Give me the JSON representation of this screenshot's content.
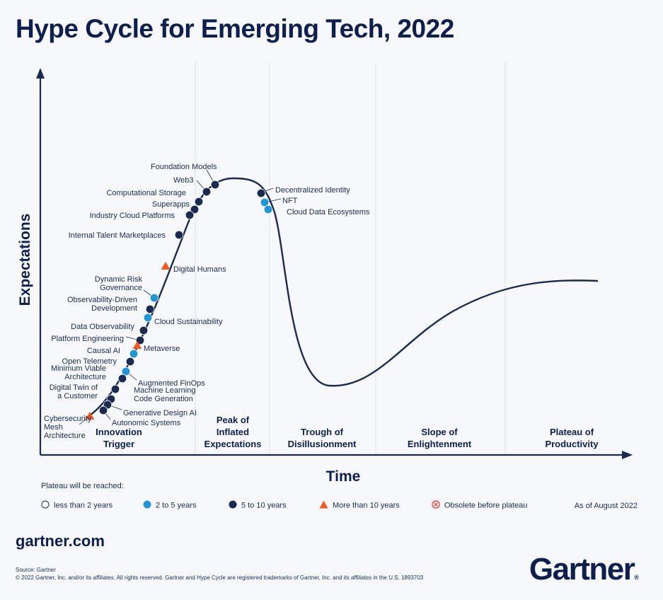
{
  "title": "Hype Cycle for Emerging Tech, 2022",
  "axes": {
    "y_label": "Expectations",
    "x_label": "Time"
  },
  "phases": [
    {
      "lines": [
        "Innovation",
        "Trigger"
      ]
    },
    {
      "lines": [
        "Peak of",
        "Inflated",
        "Expectations"
      ]
    },
    {
      "lines": [
        "Trough of",
        "Disillusionment"
      ]
    },
    {
      "lines": [
        "Slope of",
        "Enlightenment"
      ]
    },
    {
      "lines": [
        "Plateau of",
        "Productivity"
      ]
    }
  ],
  "colors": {
    "navy": "#1b2a4e",
    "blue": "#2196d3",
    "orange": "#f05a22",
    "obsolete": "#e0362c",
    "grid": "#dde3ec"
  },
  "technologies": [
    {
      "name": [
        "Foundation Models"
      ],
      "category": "5-10"
    },
    {
      "name": [
        "Web3"
      ],
      "category": "5-10"
    },
    {
      "name": [
        "Computational Storage"
      ],
      "category": "5-10"
    },
    {
      "name": [
        "Superapps"
      ],
      "category": "5-10"
    },
    {
      "name": [
        "Industry Cloud Platforms"
      ],
      "category": "5-10"
    },
    {
      "name": [
        "Internal Talent Marketplaces"
      ],
      "category": "5-10"
    },
    {
      "name": [
        "Digital Humans"
      ],
      "category": "10+"
    },
    {
      "name": [
        "Dynamic Risk",
        "Governance"
      ],
      "category": "2-5"
    },
    {
      "name": [
        "Observability-Driven",
        "Development"
      ],
      "category": "5-10"
    },
    {
      "name": [
        "Cloud Sustainability"
      ],
      "category": "2-5"
    },
    {
      "name": [
        "Data Observability"
      ],
      "category": "5-10"
    },
    {
      "name": [
        "Platform Engineering"
      ],
      "category": "5-10"
    },
    {
      "name": [
        "Metaverse"
      ],
      "category": "10+"
    },
    {
      "name": [
        "Causal AI"
      ],
      "category": "2-5"
    },
    {
      "name": [
        "Open Telemetry"
      ],
      "category": "5-10"
    },
    {
      "name": [
        "Augmented FinOps"
      ],
      "category": "2-5"
    },
    {
      "name": [
        "Minimum Viable",
        "Architecture"
      ],
      "category": "5-10"
    },
    {
      "name": [
        "Digital Twin of",
        "a Customer"
      ],
      "category": "5-10"
    },
    {
      "name": [
        "Machine Learning",
        "Code Generation"
      ],
      "category": "5-10"
    },
    {
      "name": [
        "Generative Design AI"
      ],
      "category": "5-10"
    },
    {
      "name": [
        "Autonomic Systems"
      ],
      "category": "5-10"
    },
    {
      "name": [
        "Cybersecurity",
        "Mesh",
        "Architecture"
      ],
      "category": "10+"
    },
    {
      "name": [
        "Decentralized Identity"
      ],
      "category": "5-10"
    },
    {
      "name": [
        "NFT"
      ],
      "category": "2-5"
    },
    {
      "name": [
        "Cloud Data Ecosystems"
      ],
      "category": "2-5"
    }
  ],
  "legend": {
    "heading": "Plateau will be reached:",
    "items": [
      {
        "label": "less than 2 years",
        "symbol": "circle-open"
      },
      {
        "label": "2 to 5 years",
        "symbol": "circle-blue"
      },
      {
        "label": "5 to 10 years",
        "symbol": "circle-navy"
      },
      {
        "label": "More than 10 years",
        "symbol": "triangle-orange"
      },
      {
        "label": "Obsolete before plateau",
        "symbol": "circle-x"
      }
    ],
    "as_of": "As of August 2022"
  },
  "footer": {
    "site": "gartner.com",
    "source": "Source: Gartner",
    "copyright": "© 2022 Gartner, Inc. and/or its affiliates. All rights reserved. Gartner and Hype Cycle are registered trademarks of Gartner, Inc. and its affiliates in the U.S. 1893703",
    "logo": "Gartner",
    "logo_mark": "®"
  }
}
